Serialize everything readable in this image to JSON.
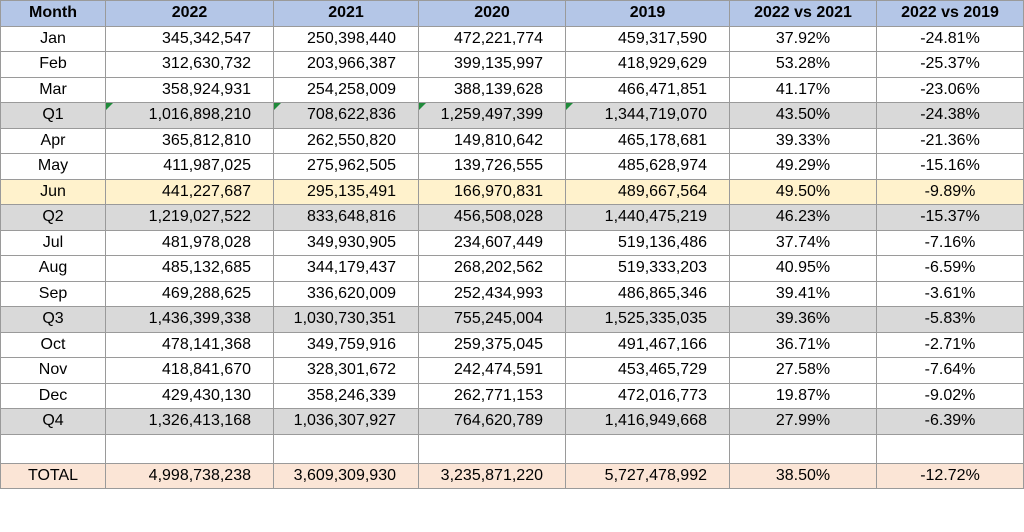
{
  "columns": [
    "Month",
    "2022",
    "2021",
    "2020",
    "2019",
    "2022 vs 2021",
    "2022 vs 2019"
  ],
  "rows": [
    {
      "type": "month",
      "cells": [
        "Jan",
        "345,342,547",
        "250,398,440",
        "472,221,774",
        "459,317,590",
        "37.92%",
        "-24.81%"
      ]
    },
    {
      "type": "month",
      "cells": [
        "Feb",
        "312,630,732",
        "203,966,387",
        "399,135,997",
        "418,929,629",
        "53.28%",
        "-25.37%"
      ]
    },
    {
      "type": "month",
      "cells": [
        "Mar",
        "358,924,931",
        "254,258,009",
        "388,139,628",
        "466,471,851",
        "41.17%",
        "-23.06%"
      ]
    },
    {
      "type": "quarter",
      "cells": [
        "Q1",
        "1,016,898,210",
        "708,622,836",
        "1,259,497,399",
        "1,344,719,070",
        "43.50%",
        "-24.38%"
      ]
    },
    {
      "type": "month",
      "cells": [
        "Apr",
        "365,812,810",
        "262,550,820",
        "149,810,642",
        "465,178,681",
        "39.33%",
        "-21.36%"
      ]
    },
    {
      "type": "month",
      "cells": [
        "May",
        "411,987,025",
        "275,962,505",
        "139,726,555",
        "485,628,974",
        "49.29%",
        "-15.16%"
      ]
    },
    {
      "type": "highlight",
      "cells": [
        "Jun",
        "441,227,687",
        "295,135,491",
        "166,970,831",
        "489,667,564",
        "49.50%",
        "-9.89%"
      ]
    },
    {
      "type": "quarter",
      "cells": [
        "Q2",
        "1,219,027,522",
        "833,648,816",
        "456,508,028",
        "1,440,475,219",
        "46.23%",
        "-15.37%"
      ]
    },
    {
      "type": "month",
      "cells": [
        "Jul",
        "481,978,028",
        "349,930,905",
        "234,607,449",
        "519,136,486",
        "37.74%",
        "-7.16%"
      ]
    },
    {
      "type": "month",
      "cells": [
        "Aug",
        "485,132,685",
        "344,179,437",
        "268,202,562",
        "519,333,203",
        "40.95%",
        "-6.59%"
      ]
    },
    {
      "type": "month",
      "cells": [
        "Sep",
        "469,288,625",
        "336,620,009",
        "252,434,993",
        "486,865,346",
        "39.41%",
        "-3.61%"
      ]
    },
    {
      "type": "quarter",
      "cells": [
        "Q3",
        "1,436,399,338",
        "1,030,730,351",
        "755,245,004",
        "1,525,335,035",
        "39.36%",
        "-5.83%"
      ]
    },
    {
      "type": "month",
      "cells": [
        "Oct",
        "478,141,368",
        "349,759,916",
        "259,375,045",
        "491,467,166",
        "36.71%",
        "-2.71%"
      ]
    },
    {
      "type": "month",
      "cells": [
        "Nov",
        "418,841,670",
        "328,301,672",
        "242,474,591",
        "453,465,729",
        "27.58%",
        "-7.64%"
      ]
    },
    {
      "type": "month",
      "cells": [
        "Dec",
        "429,430,130",
        "358,246,339",
        "262,771,153",
        "472,016,773",
        "19.87%",
        "-9.02%"
      ]
    },
    {
      "type": "quarter",
      "cells": [
        "Q4",
        "1,326,413,168",
        "1,036,307,927",
        "764,620,789",
        "1,416,949,668",
        "27.99%",
        "-6.39%"
      ]
    }
  ],
  "total": [
    "TOTAL",
    "4,998,738,238",
    "3,609,309,930",
    "3,235,871,220",
    "5,727,478,992",
    "38.50%",
    "-12.72%"
  ],
  "colors": {
    "header_fill": "#b4c6e7",
    "quarter_fill": "#d9d9d9",
    "highlight_fill": "#fff2cc",
    "total_fill": "#fbe5d6",
    "error_flag": "#1f8a3a"
  }
}
